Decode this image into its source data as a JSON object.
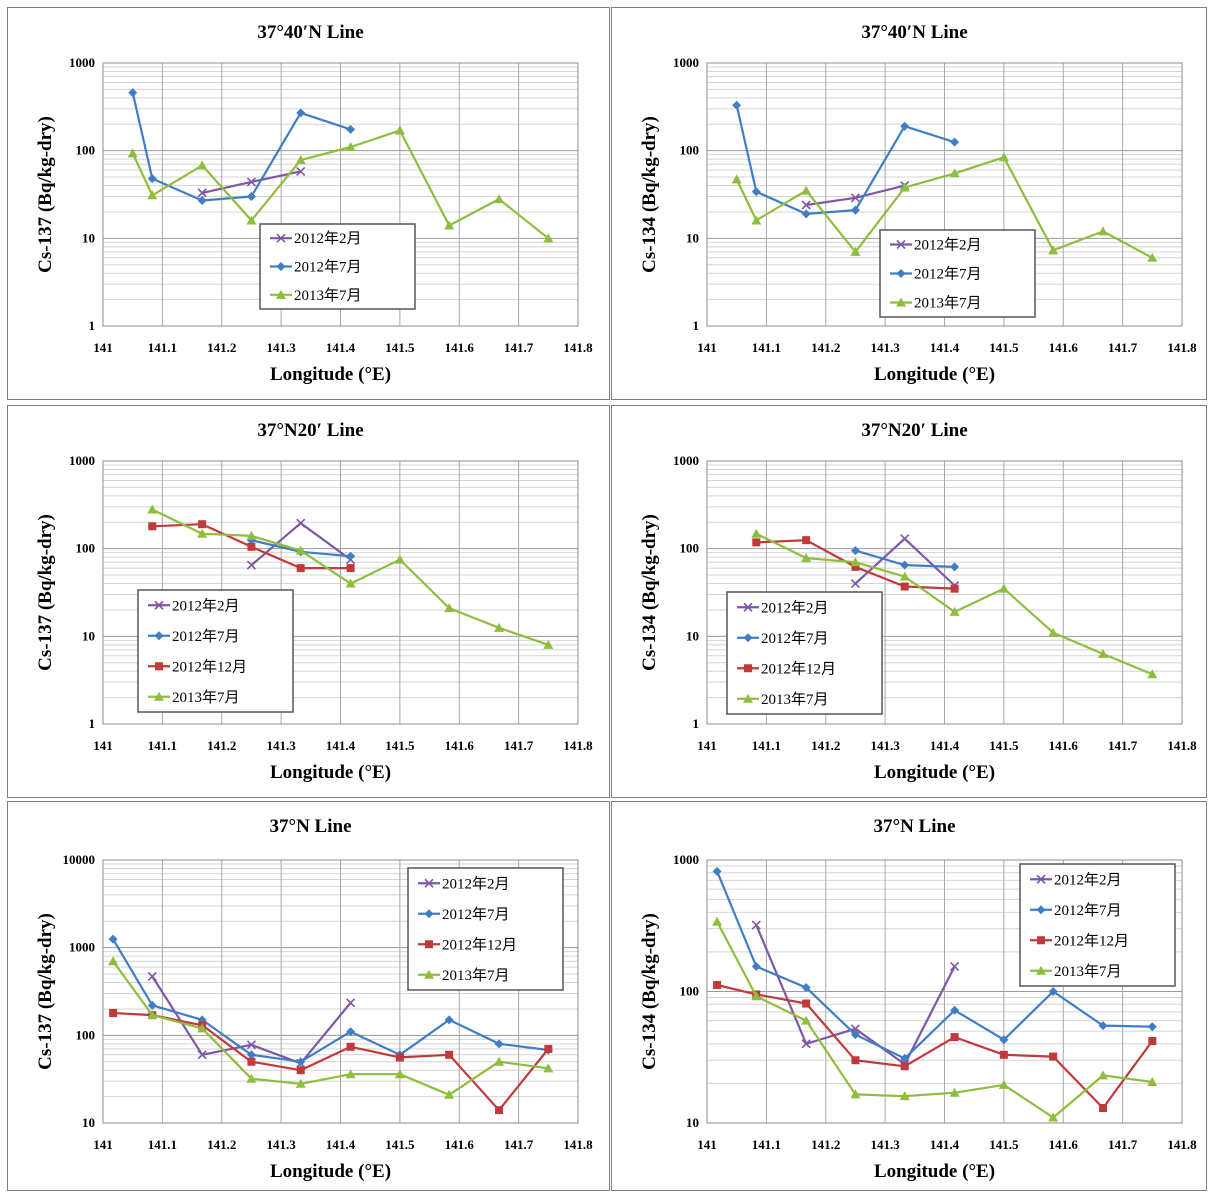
{
  "colors": {
    "2012年2月": "#7e57a6",
    "2012年7月": "#3f7dc4",
    "2012年12月": "#c0393b",
    "2013年7月": "#8fbd3e"
  },
  "markers": {
    "2012年2月": "x",
    "2012年7月": "diamond",
    "2012年12月": "square",
    "2013年7月": "triangle"
  },
  "chart_data": [
    {
      "id": "p1",
      "type": "line",
      "scale": "log",
      "title": "37°40′N  Line",
      "xlabel": "Longitude (°E)",
      "ylabel": "Cs-137 (Bq/kg-dry)",
      "xlim": [
        141,
        141.8
      ],
      "xticks": [
        "141",
        "141.1",
        "141.2",
        "141.3",
        "141.4",
        "141.5",
        "141.6",
        "141.7",
        "141.8"
      ],
      "ylim": [
        1,
        1000
      ],
      "yticks": [
        "1",
        "10",
        "100",
        "1000"
      ],
      "legend_position": "lower-center",
      "series": [
        {
          "name": "2012年2月",
          "x": [
            141.167,
            141.25,
            141.333
          ],
          "y": [
            33,
            44,
            58
          ]
        },
        {
          "name": "2012年7月",
          "x": [
            141.05,
            141.083,
            141.167,
            141.25,
            141.333,
            141.417
          ],
          "y": [
            460,
            48,
            27,
            30,
            270,
            175
          ]
        },
        {
          "name": "2013年7月",
          "x": [
            141.05,
            141.083,
            141.167,
            141.25,
            141.333,
            141.417,
            141.5,
            141.583,
            141.667,
            141.75
          ],
          "y": [
            93,
            31,
            68,
            16,
            78,
            110,
            170,
            14,
            28,
            10
          ]
        }
      ]
    },
    {
      "id": "p2",
      "type": "line",
      "scale": "log",
      "title": "37°40′N  Line",
      "xlabel": "Longitude (°E)",
      "ylabel": "Cs-134 (Bq/kg-dry)",
      "xlim": [
        141,
        141.8
      ],
      "xticks": [
        "141",
        "141.1",
        "141.2",
        "141.3",
        "141.4",
        "141.5",
        "141.6",
        "141.7",
        "141.8"
      ],
      "ylim": [
        1,
        1000
      ],
      "yticks": [
        "1",
        "10",
        "100",
        "1000"
      ],
      "legend_position": "lower-center",
      "series": [
        {
          "name": "2012年2月",
          "x": [
            141.167,
            141.25,
            141.333
          ],
          "y": [
            24,
            29,
            40
          ]
        },
        {
          "name": "2012年7月",
          "x": [
            141.05,
            141.083,
            141.167,
            141.25,
            141.333,
            141.417
          ],
          "y": [
            330,
            34,
            19,
            21,
            190,
            125
          ]
        },
        {
          "name": "2013年7月",
          "x": [
            141.05,
            141.083,
            141.167,
            141.25,
            141.333,
            141.417,
            141.5,
            141.583,
            141.667,
            141.75
          ],
          "y": [
            47,
            16,
            35,
            7,
            38,
            55,
            84,
            7.3,
            12,
            6
          ]
        }
      ]
    },
    {
      "id": "p3",
      "type": "line",
      "scale": "log",
      "title": "37°N20′  Line",
      "xlabel": "Longitude (°E)",
      "ylabel": "Cs-137 (Bq/kg-dry)",
      "xlim": [
        141,
        141.8
      ],
      "xticks": [
        "141",
        "141.1",
        "141.2",
        "141.3",
        "141.4",
        "141.5",
        "141.6",
        "141.7",
        "141.8"
      ],
      "ylim": [
        1,
        1000
      ],
      "yticks": [
        "1",
        "10",
        "100",
        "1000"
      ],
      "legend_position": "lower-left",
      "series": [
        {
          "name": "2012年2月",
          "x": [
            141.25,
            141.333,
            141.417
          ],
          "y": [
            65,
            195,
            75
          ]
        },
        {
          "name": "2012年7月",
          "x": [
            141.25,
            141.333,
            141.417
          ],
          "y": [
            125,
            92,
            82
          ]
        },
        {
          "name": "2012年12月",
          "x": [
            141.083,
            141.167,
            141.25,
            141.333,
            141.417
          ],
          "y": [
            180,
            190,
            105,
            60,
            60
          ]
        },
        {
          "name": "2013年7月",
          "x": [
            141.083,
            141.167,
            141.25,
            141.333,
            141.417,
            141.5,
            141.583,
            141.667,
            141.75
          ],
          "y": [
            280,
            148,
            140,
            95,
            40,
            75,
            21,
            12.5,
            8
          ]
        }
      ]
    },
    {
      "id": "p4",
      "type": "line",
      "scale": "log",
      "title": "37°N20′  Line",
      "xlabel": "Longitude (°E)",
      "ylabel": "Cs-134 (Bq/kg-dry)",
      "xlim": [
        141,
        141.8
      ],
      "xticks": [
        "141",
        "141.1",
        "141.2",
        "141.3",
        "141.4",
        "141.5",
        "141.6",
        "141.7",
        "141.8"
      ],
      "ylim": [
        1,
        1000
      ],
      "yticks": [
        "1",
        "10",
        "100",
        "1000"
      ],
      "legend_position": "lower-left",
      "series": [
        {
          "name": "2012年2月",
          "x": [
            141.25,
            141.333,
            141.417
          ],
          "y": [
            40,
            130,
            38
          ]
        },
        {
          "name": "2012年7月",
          "x": [
            141.25,
            141.333,
            141.417
          ],
          "y": [
            95,
            65,
            62
          ]
        },
        {
          "name": "2012年12月",
          "x": [
            141.083,
            141.167,
            141.25,
            141.333,
            141.417
          ],
          "y": [
            118,
            125,
            62,
            37,
            35
          ]
        },
        {
          "name": "2013年7月",
          "x": [
            141.083,
            141.167,
            141.25,
            141.333,
            141.417,
            141.5,
            141.583,
            141.667,
            141.75
          ],
          "y": [
            148,
            78,
            70,
            48,
            19,
            35,
            11,
            6.3,
            3.7
          ]
        }
      ]
    },
    {
      "id": "p5",
      "type": "line",
      "scale": "log",
      "title": "37°N  Line",
      "xlabel": "Longitude (°E)",
      "ylabel": "Cs-137 (Bq/kg-dry)",
      "xlim": [
        141,
        141.8
      ],
      "xticks": [
        "141",
        "141.1",
        "141.2",
        "141.3",
        "141.4",
        "141.5",
        "141.6",
        "141.7",
        "141.8"
      ],
      "ylim": [
        10,
        10000
      ],
      "yticks": [
        "10",
        "100",
        "1000",
        "10000"
      ],
      "legend_position": "top-right",
      "series": [
        {
          "name": "2012年2月",
          "x": [
            141.083,
            141.167,
            141.25,
            141.333,
            141.417
          ],
          "y": [
            470,
            60,
            78,
            48,
            235
          ]
        },
        {
          "name": "2012年7月",
          "x": [
            141.017,
            141.083,
            141.167,
            141.25,
            141.333,
            141.417,
            141.5,
            141.583,
            141.667,
            141.75
          ],
          "y": [
            1250,
            220,
            150,
            60,
            50,
            110,
            60,
            150,
            80,
            68
          ]
        },
        {
          "name": "2012年12月",
          "x": [
            141.017,
            141.083,
            141.167,
            141.25,
            141.333,
            141.417,
            141.5,
            141.583,
            141.667,
            141.75
          ],
          "y": [
            180,
            170,
            130,
            50,
            40,
            74,
            56,
            60,
            14,
            70
          ]
        },
        {
          "name": "2013年7月",
          "x": [
            141.017,
            141.083,
            141.167,
            141.25,
            141.333,
            141.417,
            141.5,
            141.583,
            141.667,
            141.75
          ],
          "y": [
            700,
            170,
            120,
            32,
            28,
            36,
            36,
            21,
            50,
            42
          ]
        }
      ]
    },
    {
      "id": "p6",
      "type": "line",
      "scale": "log",
      "title": "37°N  Line",
      "xlabel": "Longitude (°E)",
      "ylabel": "Cs-134 (Bq/kg-dry)",
      "xlim": [
        141,
        141.8
      ],
      "xticks": [
        "141",
        "141.1",
        "141.2",
        "141.3",
        "141.4",
        "141.5",
        "141.6",
        "141.7",
        "141.8"
      ],
      "ylim": [
        10,
        1000
      ],
      "yticks": [
        "10",
        "100",
        "1000"
      ],
      "legend_position": "top-right",
      "series": [
        {
          "name": "2012年2月",
          "x": [
            141.083,
            141.167,
            141.25,
            141.333,
            141.417
          ],
          "y": [
            320,
            40,
            52,
            28,
            155
          ]
        },
        {
          "name": "2012年7月",
          "x": [
            141.017,
            141.083,
            141.167,
            141.25,
            141.333,
            141.417,
            141.5,
            141.583,
            141.667,
            141.75
          ],
          "y": [
            820,
            155,
            107,
            47,
            31,
            72,
            43,
            100,
            55,
            54
          ]
        },
        {
          "name": "2012年12月",
          "x": [
            141.017,
            141.083,
            141.167,
            141.25,
            141.333,
            141.417,
            141.5,
            141.583,
            141.667,
            141.75
          ],
          "y": [
            112,
            95,
            81,
            30,
            27,
            45,
            33,
            32,
            13,
            42
          ]
        },
        {
          "name": "2013年7月",
          "x": [
            141.017,
            141.083,
            141.167,
            141.25,
            141.333,
            141.417,
            141.5,
            141.583,
            141.667,
            141.75
          ],
          "y": [
            340,
            92,
            60,
            16.5,
            16,
            17,
            19.5,
            11,
            23,
            20.5
          ]
        }
      ]
    }
  ]
}
